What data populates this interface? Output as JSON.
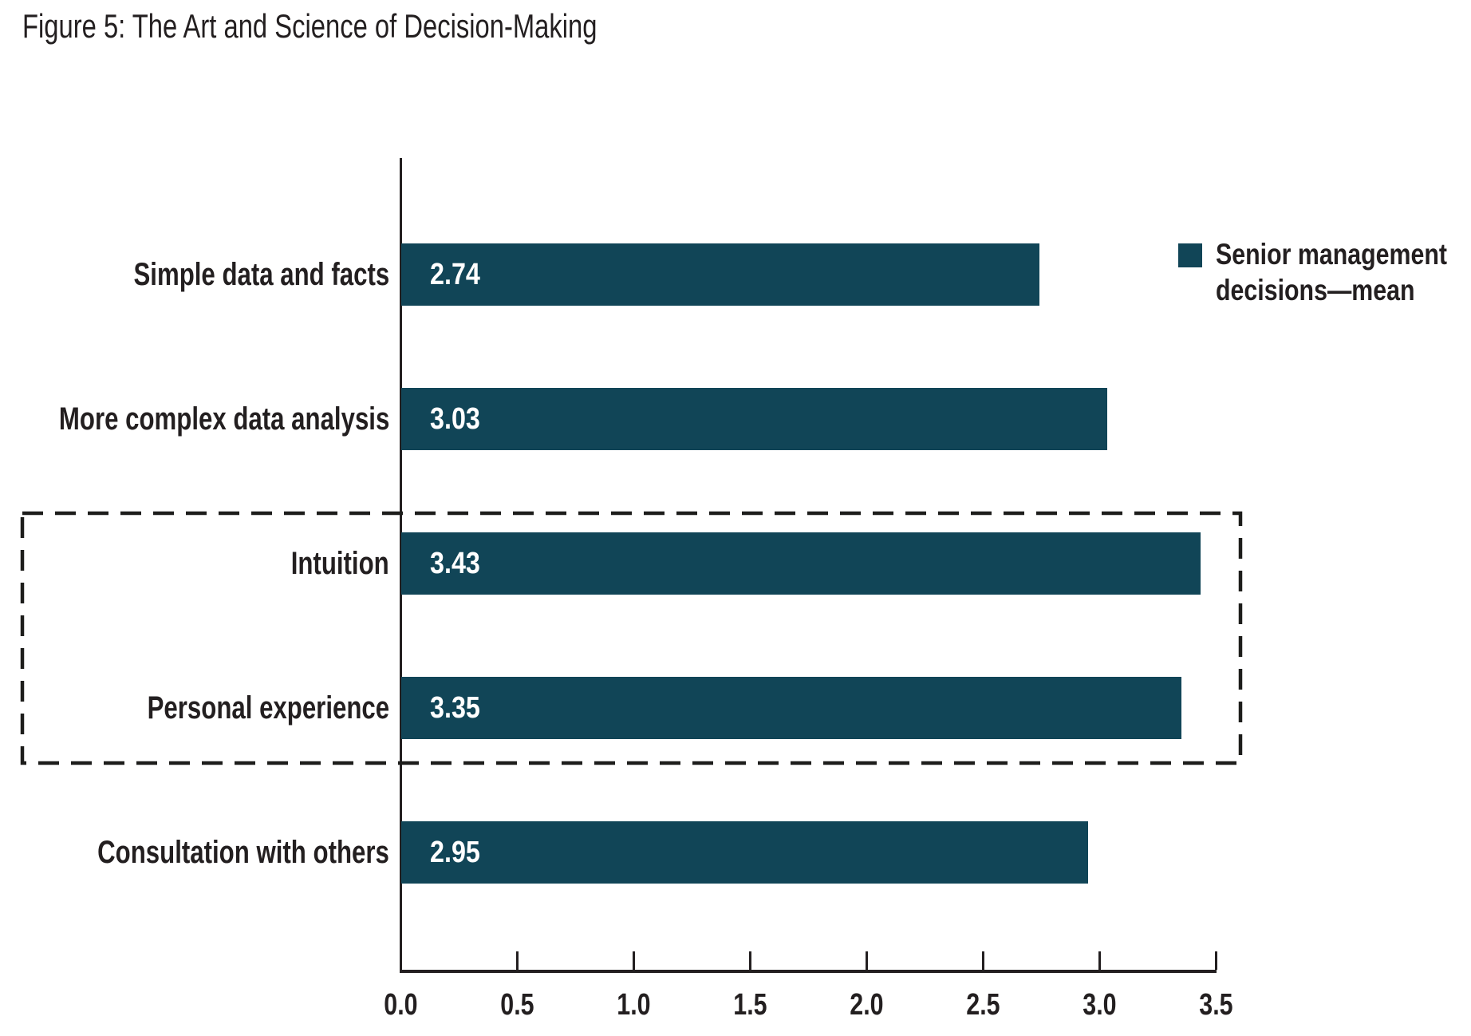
{
  "figure": {
    "title": "Figure 5: The Art and Science of Decision-Making"
  },
  "chart_data": {
    "type": "bar",
    "orientation": "horizontal",
    "title": "Figure 5: The Art and Science of Decision-Making",
    "categories": [
      "Simple data and facts",
      "More complex data analysis",
      "Intuition",
      "Personal experience",
      "Consultation with others"
    ],
    "values": [
      2.74,
      3.03,
      3.43,
      3.35,
      2.95
    ],
    "series": [
      {
        "name": "Senior management decisions—mean",
        "values": [
          2.74,
          3.03,
          3.43,
          3.35,
          2.95
        ]
      }
    ],
    "xlabel": "",
    "ylabel": "",
    "xlim": [
      0.0,
      3.5
    ],
    "x_ticks": [
      0.0,
      0.5,
      1.0,
      1.5,
      2.0,
      2.5,
      3.0,
      3.5
    ],
    "x_tick_labels": [
      "0.0",
      "0.5",
      "1.0",
      "1.5",
      "2.0",
      "2.5",
      "3.0",
      "3.5"
    ],
    "grid": false,
    "legend_position": "right",
    "legend": {
      "line1": "Senior management",
      "line2": "decisions—mean"
    },
    "highlight_box": {
      "style": "dashed",
      "categories": [
        "Intuition",
        "Personal experience"
      ]
    }
  },
  "colors": {
    "bar": "#114557",
    "axis": "#231f20",
    "text": "#231f20",
    "value_text": "#ffffff",
    "highlight_border": "#1d1d1b",
    "background": "#ffffff"
  }
}
